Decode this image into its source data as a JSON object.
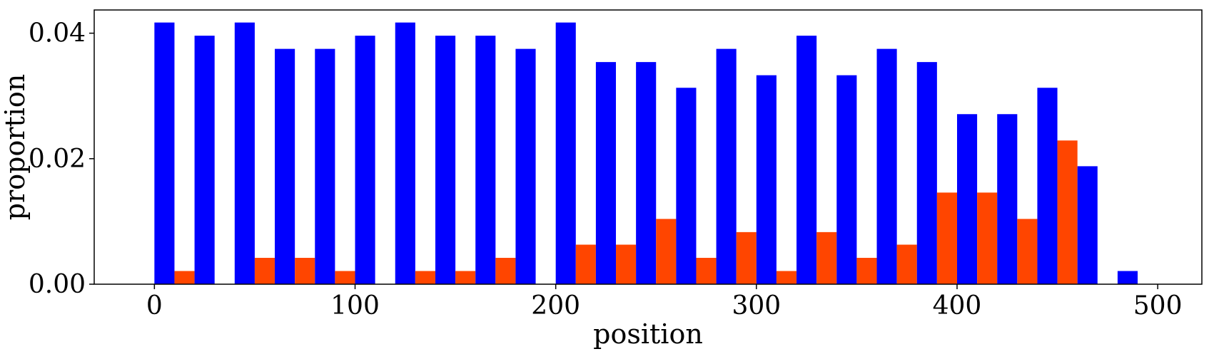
{
  "chart_data": {
    "type": "bar",
    "title": "",
    "xlabel": "position",
    "ylabel": "proportion",
    "xlim": [
      -30,
      522
    ],
    "ylim": [
      0,
      0.0437
    ],
    "xticks": [
      {
        "value": 0,
        "label": "0"
      },
      {
        "value": 100,
        "label": "100"
      },
      {
        "value": 200,
        "label": "200"
      },
      {
        "value": 300,
        "label": "300"
      },
      {
        "value": 400,
        "label": "400"
      },
      {
        "value": 500,
        "label": "500"
      }
    ],
    "yticks": [
      {
        "value": 0.0,
        "label": "0.00"
      },
      {
        "value": 0.02,
        "label": "0.02"
      },
      {
        "value": 0.04,
        "label": "0.04"
      }
    ],
    "bin_width": 20,
    "bin_starts": [
      0,
      20,
      40,
      60,
      80,
      100,
      120,
      140,
      160,
      180,
      200,
      220,
      240,
      260,
      280,
      300,
      320,
      340,
      360,
      380,
      400,
      420,
      440,
      460,
      480
    ],
    "series": [
      {
        "name": "blue",
        "color": "#0000ff",
        "values": [
          0.0417,
          0.0396,
          0.0417,
          0.0375,
          0.0375,
          0.0396,
          0.0417,
          0.0396,
          0.0396,
          0.0375,
          0.0417,
          0.0354,
          0.0354,
          0.0313,
          0.0375,
          0.0333,
          0.0396,
          0.0333,
          0.0375,
          0.0354,
          0.0271,
          0.0271,
          0.0313,
          0.0188,
          0.0021
        ]
      },
      {
        "name": "orange",
        "color": "#ff4500",
        "values": [
          0.0021,
          0.0,
          0.0042,
          0.0042,
          0.0021,
          0.0,
          0.0021,
          0.0021,
          0.0042,
          0.0,
          0.0063,
          0.0063,
          0.0104,
          0.0042,
          0.0083,
          0.0021,
          0.0083,
          0.0042,
          0.0063,
          0.0146,
          0.0146,
          0.0104,
          0.0229,
          0.0,
          0.0
        ]
      }
    ]
  }
}
